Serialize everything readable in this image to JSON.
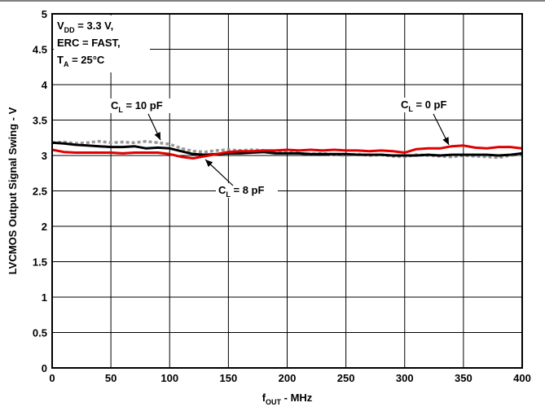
{
  "chart_data": {
    "type": "line",
    "xlabel": {
      "main": "f",
      "sub": "OUT",
      "rest": " - MHz"
    },
    "ylabel": "LVCMOS Output Signal Swing - V",
    "xlim": [
      0,
      400
    ],
    "ylim": [
      0,
      5
    ],
    "x_ticks": [
      "0",
      "50",
      "100",
      "150",
      "200",
      "250",
      "300",
      "350",
      "400"
    ],
    "y_ticks": [
      "0",
      "0.5",
      "1",
      "1.5",
      "2",
      "2.5",
      "3",
      "3.5",
      "4",
      "4.5",
      "5"
    ],
    "grid": true,
    "conditions": [
      {
        "main": "V",
        "sub": "DD",
        "rest": " = 3.3 V,"
      },
      {
        "main": "ERC = FAST,",
        "sub": "",
        "rest": ""
      },
      {
        "main": "T",
        "sub": "A",
        "rest": " = 25°C"
      }
    ],
    "annotations": [
      {
        "main": "C",
        "sub": "L",
        "rest": " = 10 pF"
      },
      {
        "main": "C",
        "sub": "L",
        "rest": " = 0 pF"
      },
      {
        "main": "C",
        "sub": "L",
        "rest": " = 8 pF"
      }
    ],
    "series": [
      {
        "color": "#000000",
        "style": "solid",
        "x": [
          0,
          10,
          20,
          30,
          40,
          50,
          60,
          70,
          80,
          90,
          100,
          110,
          120,
          130,
          140,
          150,
          160,
          170,
          180,
          190,
          200,
          210,
          220,
          230,
          240,
          250,
          260,
          270,
          280,
          290,
          300,
          310,
          320,
          330,
          340,
          350,
          360,
          370,
          380,
          390,
          400
        ],
        "y": [
          3.18,
          3.17,
          3.15,
          3.14,
          3.13,
          3.12,
          3.12,
          3.13,
          3.1,
          3.11,
          3.1,
          3.06,
          3.02,
          3.01,
          3.02,
          3.03,
          3.03,
          3.04,
          3.05,
          3.03,
          3.03,
          3.03,
          3.02,
          3.02,
          3.02,
          3.02,
          3.01,
          3.01,
          3.01,
          3.0,
          3.0,
          3.0,
          3.01,
          3.0,
          3.01,
          3.01,
          3.01,
          3.01,
          3.0,
          3.01,
          3.03
        ]
      },
      {
        "color": "#9a9a9a",
        "style": "dotted",
        "x": [
          0,
          10,
          20,
          30,
          40,
          50,
          60,
          70,
          80,
          90,
          100,
          110,
          120,
          130,
          140,
          150,
          160,
          170,
          180,
          190,
          200,
          210,
          220,
          230,
          240,
          250,
          260,
          270,
          280,
          290,
          300,
          310,
          320,
          330,
          340,
          350,
          360,
          370,
          380,
          390,
          400
        ],
        "y": [
          3.18,
          3.19,
          3.17,
          3.18,
          3.2,
          3.18,
          3.19,
          3.18,
          3.2,
          3.18,
          3.16,
          3.1,
          3.06,
          3.05,
          3.07,
          3.08,
          3.07,
          3.08,
          3.07,
          3.06,
          3.05,
          3.03,
          3.02,
          3.03,
          3.01,
          3.0,
          3.02,
          3.0,
          3.01,
          2.99,
          2.98,
          3.01,
          3.0,
          2.99,
          2.98,
          3.0,
          2.99,
          2.98,
          2.97,
          3.0,
          3.02
        ]
      },
      {
        "color": "#e10000",
        "style": "solid",
        "x": [
          0,
          10,
          20,
          30,
          40,
          50,
          60,
          70,
          80,
          90,
          100,
          110,
          120,
          130,
          140,
          150,
          160,
          170,
          180,
          190,
          200,
          210,
          220,
          230,
          240,
          250,
          260,
          270,
          280,
          290,
          300,
          310,
          320,
          330,
          340,
          350,
          360,
          370,
          380,
          390,
          400
        ],
        "y": [
          3.08,
          3.05,
          3.04,
          3.04,
          3.04,
          3.04,
          3.03,
          3.04,
          3.04,
          3.04,
          3.02,
          2.98,
          2.96,
          2.99,
          3.02,
          3.05,
          3.06,
          3.06,
          3.07,
          3.07,
          3.08,
          3.07,
          3.08,
          3.07,
          3.08,
          3.07,
          3.07,
          3.06,
          3.07,
          3.06,
          3.04,
          3.09,
          3.1,
          3.1,
          3.13,
          3.14,
          3.11,
          3.1,
          3.12,
          3.12,
          3.1
        ]
      }
    ]
  }
}
